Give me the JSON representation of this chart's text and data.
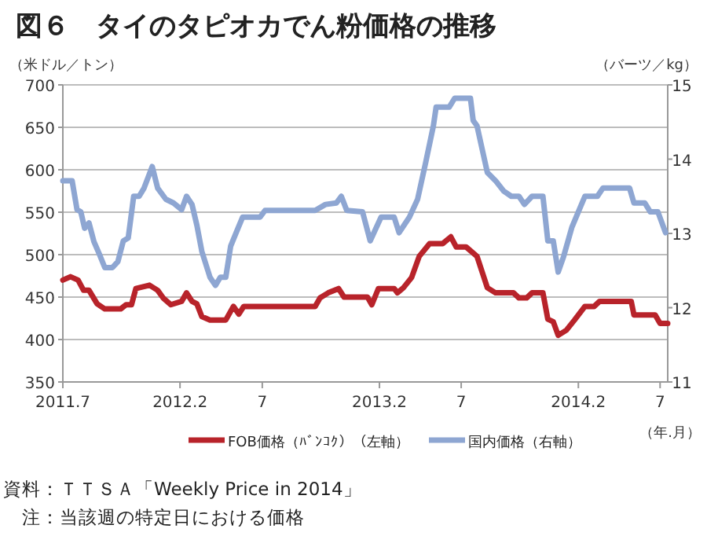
{
  "chart_data": {
    "type": "line",
    "title": "図６　タイのタピオカでん粉価格の推移",
    "ylabel": "（米ドル／トン）",
    "y2label": "（バーツ／kg）",
    "xlabel": "（年.月）",
    "annotations": [
      "資料：ＴＴＳＡ「Weekly Price in 2014」",
      "注：当該週の特定日における価格"
    ],
    "xlim": [
      "2011-07-01",
      "2014-07-15"
    ],
    "xticks": [
      {
        "value": "2011-07-01",
        "label": "2011.7"
      },
      {
        "value": "2012-02-01",
        "label": "2012.2"
      },
      {
        "value": "2012-07-01",
        "label": "7"
      },
      {
        "value": "2013-02-01",
        "label": "2013.2"
      },
      {
        "value": "2013-07-01",
        "label": "7"
      },
      {
        "value": "2014-02-01",
        "label": "2014.2"
      },
      {
        "value": "2014-07-01",
        "label": "7"
      }
    ],
    "ylim": [
      350,
      700
    ],
    "yticks": [
      350,
      400,
      450,
      500,
      550,
      600,
      650,
      700
    ],
    "y2lim": [
      11,
      15
    ],
    "y2ticks": [
      11,
      12,
      13,
      14,
      15
    ],
    "grid": "y",
    "legend": "bottom",
    "marker": "none",
    "line_style": "solid",
    "series": [
      {
        "name": "FOB価格（ﾊﾞﾝｺｸ）（左軸）",
        "color": "#b8232a",
        "x": [
          "2011-07-01",
          "2011-07-15",
          "2011-07-29",
          "2011-08-08",
          "2011-08-18",
          "2011-09-02",
          "2011-09-16",
          "2011-10-15",
          "2011-10-25",
          "2011-11-04",
          "2011-11-12",
          "2011-12-07",
          "2011-12-22",
          "2012-01-01",
          "2012-01-15",
          "2012-02-04",
          "2012-02-13",
          "2012-02-23",
          "2012-03-03",
          "2012-03-12",
          "2012-03-27",
          "2012-04-25",
          "2012-05-09",
          "2012-05-19",
          "2012-05-28",
          "2012-10-06",
          "2012-10-15",
          "2012-10-30",
          "2012-11-18",
          "2012-11-28",
          "2013-01-10",
          "2013-01-18",
          "2013-01-30",
          "2013-02-28",
          "2013-03-06",
          "2013-03-17",
          "2013-04-01",
          "2013-04-15",
          "2013-05-04",
          "2013-05-28",
          "2013-06-12",
          "2013-06-22",
          "2013-07-10",
          "2013-07-30",
          "2013-08-18",
          "2013-09-02",
          "2013-10-05",
          "2013-10-15",
          "2013-10-29",
          "2013-11-08",
          "2013-11-28",
          "2013-12-07",
          "2013-12-17",
          "2013-12-26",
          "2014-01-10",
          "2014-01-25",
          "2014-02-13",
          "2014-03-02",
          "2014-03-12",
          "2014-05-09",
          "2014-05-14",
          "2014-06-22",
          "2014-07-01",
          "2014-07-15"
        ],
        "values": [
          470,
          474,
          470,
          458,
          458,
          442,
          436,
          436,
          441,
          441,
          460,
          464,
          458,
          449,
          441,
          445,
          455,
          445,
          442,
          427,
          423,
          423,
          439,
          430,
          439,
          439,
          449,
          455,
          460,
          450,
          450,
          441,
          460,
          460,
          455,
          461,
          473,
          498,
          513,
          513,
          521,
          509,
          509,
          498,
          461,
          455,
          455,
          449,
          449,
          455,
          455,
          424,
          421,
          405,
          411,
          423,
          439,
          439,
          445,
          445,
          429,
          429,
          419,
          419
        ]
      },
      {
        "name": "国内価格（右軸）",
        "color": "#8ea6d2",
        "axis": "y2",
        "x": [
          "2011-07-01",
          "2011-07-18",
          "2011-07-27",
          "2011-08-03",
          "2011-08-10",
          "2011-08-18",
          "2011-08-27",
          "2011-09-06",
          "2011-09-16",
          "2011-09-30",
          "2011-10-10",
          "2011-10-20",
          "2011-10-29",
          "2011-11-08",
          "2011-11-18",
          "2011-11-27",
          "2011-12-12",
          "2011-12-22",
          "2012-01-06",
          "2012-01-20",
          "2012-02-04",
          "2012-02-13",
          "2012-02-23",
          "2012-03-03",
          "2012-03-12",
          "2012-03-27",
          "2012-04-06",
          "2012-04-15",
          "2012-04-25",
          "2012-05-04",
          "2012-05-14",
          "2012-05-26",
          "2012-06-27",
          "2012-07-06",
          "2012-10-06",
          "2012-10-25",
          "2012-11-14",
          "2012-11-23",
          "2012-12-03",
          "2013-01-01",
          "2013-01-15",
          "2013-02-04",
          "2013-02-28",
          "2013-03-09",
          "2013-03-28",
          "2013-04-12",
          "2013-04-27",
          "2013-05-11",
          "2013-05-16",
          "2013-06-09",
          "2013-06-19",
          "2013-07-18",
          "2013-07-23",
          "2013-07-30",
          "2013-08-18",
          "2013-09-02",
          "2013-09-17",
          "2013-10-01",
          "2013-10-15",
          "2013-10-25",
          "2013-11-08",
          "2013-11-28",
          "2013-12-07",
          "2013-12-17",
          "2013-12-26",
          "2014-01-05",
          "2014-01-20",
          "2014-02-13",
          "2014-03-08",
          "2014-03-18",
          "2014-05-06",
          "2014-05-14",
          "2014-06-03",
          "2014-06-13",
          "2014-06-27",
          "2014-07-11"
        ],
        "values": [
          13.71,
          13.71,
          13.32,
          13.29,
          13.07,
          13.14,
          12.89,
          12.72,
          12.54,
          12.54,
          12.62,
          12.9,
          12.94,
          13.5,
          13.5,
          13.61,
          13.9,
          13.61,
          13.46,
          13.41,
          13.32,
          13.5,
          13.39,
          13.11,
          12.76,
          12.41,
          12.3,
          12.41,
          12.41,
          12.83,
          13.01,
          13.22,
          13.22,
          13.31,
          13.31,
          13.39,
          13.41,
          13.5,
          13.31,
          13.29,
          12.9,
          13.22,
          13.22,
          13.01,
          13.22,
          13.46,
          13.96,
          14.45,
          14.7,
          14.7,
          14.82,
          14.82,
          14.52,
          14.45,
          13.82,
          13.71,
          13.57,
          13.5,
          13.5,
          13.39,
          13.5,
          13.5,
          12.9,
          12.9,
          12.48,
          12.69,
          13.08,
          13.5,
          13.5,
          13.61,
          13.61,
          13.41,
          13.41,
          13.29,
          13.29,
          13.01
        ]
      }
    ]
  }
}
